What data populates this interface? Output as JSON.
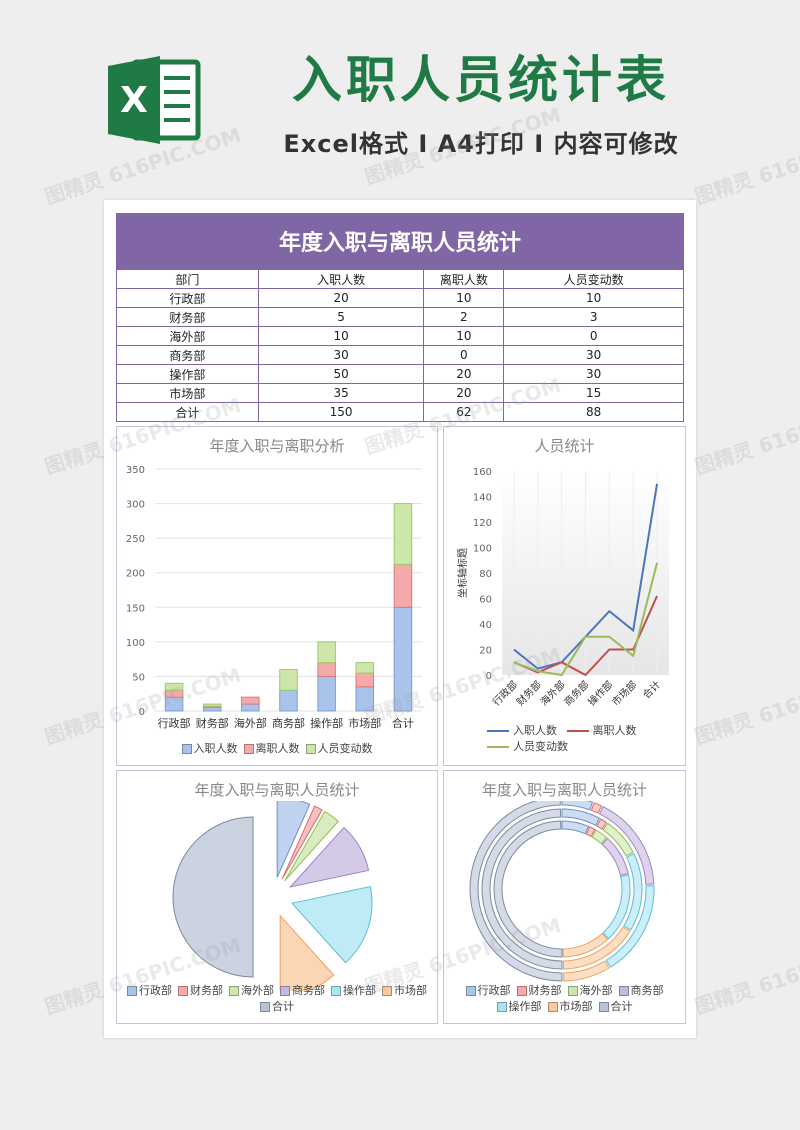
{
  "banner": {
    "logo_letter": "X",
    "title": "入职人员统计表",
    "subtitle": "Excel格式 I A4打印 I 内容可修改"
  },
  "watermark": "图精灵 616PIC.COM",
  "colors": {
    "brand_green": "#1f7a45",
    "header_purple": "#8066a5",
    "series": [
      "#a9c4eb",
      "#f4a9aa",
      "#cde6a9",
      "#c7b7e0",
      "#a9e4f3",
      "#f9c89c",
      "#b9c3d6"
    ],
    "line_series": [
      "#4a76be",
      "#c0504d",
      "#9bbb59"
    ]
  },
  "table": {
    "title": "年度入职与离职人员统计",
    "headers": [
      "部门",
      "入职人数",
      "离职人数",
      "人员变动数"
    ],
    "rows": [
      [
        "行政部",
        "20",
        "10",
        "10"
      ],
      [
        "财务部",
        "5",
        "2",
        "3"
      ],
      [
        "海外部",
        "10",
        "10",
        "0"
      ],
      [
        "商务部",
        "30",
        "0",
        "30"
      ],
      [
        "操作部",
        "50",
        "20",
        "30"
      ],
      [
        "市场部",
        "35",
        "20",
        "15"
      ],
      [
        "合计",
        "150",
        "62",
        "88"
      ]
    ]
  },
  "chart_data": [
    {
      "type": "bar",
      "stacked": true,
      "title": "年度入职与离职分析",
      "categories": [
        "行政部",
        "财务部",
        "海外部",
        "商务部",
        "操作部",
        "市场部",
        "合计"
      ],
      "series": [
        {
          "name": "入职人数",
          "values": [
            20,
            5,
            10,
            30,
            50,
            35,
            150
          ]
        },
        {
          "name": "离职人数",
          "values": [
            10,
            2,
            10,
            0,
            20,
            20,
            62
          ]
        },
        {
          "name": "人员变动数",
          "values": [
            10,
            3,
            0,
            30,
            30,
            15,
            88
          ]
        }
      ],
      "ylim": [
        0,
        350
      ],
      "yticks": [
        "0",
        "50",
        "100",
        "150",
        "200",
        "250",
        "300",
        "350"
      ],
      "grid": true,
      "legend": "bottom"
    },
    {
      "type": "line",
      "title": "人员统计",
      "ylabel": "坐标轴标题",
      "categories": [
        "行政部",
        "财务部",
        "海外部",
        "商务部",
        "操作部",
        "市场部",
        "合计"
      ],
      "series": [
        {
          "name": "入职人数",
          "values": [
            20,
            5,
            10,
            30,
            50,
            35,
            150
          ]
        },
        {
          "name": "离职人数",
          "values": [
            10,
            2,
            10,
            0,
            20,
            20,
            62
          ]
        },
        {
          "name": "人员变动数",
          "values": [
            10,
            3,
            0,
            30,
            30,
            15,
            88
          ]
        }
      ],
      "ylim": [
        0,
        160
      ],
      "yticks": [
        "0",
        "20",
        "40",
        "60",
        "80",
        "100",
        "120",
        "140",
        "160"
      ],
      "legend": "bottom"
    },
    {
      "type": "pie",
      "title": "年度入职与离职人员统计",
      "categories": [
        "行政部",
        "财务部",
        "海外部",
        "商务部",
        "操作部",
        "市场部",
        "合计"
      ],
      "values": [
        20,
        5,
        10,
        30,
        50,
        35,
        150
      ],
      "legend": "bottom"
    },
    {
      "type": "doughnut",
      "title": "年度入职与离职人员统计",
      "categories": [
        "行政部",
        "财务部",
        "海外部",
        "商务部",
        "操作部",
        "市场部",
        "合计"
      ],
      "series": [
        {
          "values": [
            20,
            5,
            10,
            30,
            50,
            35,
            150
          ]
        },
        {
          "values": [
            10,
            2,
            10,
            0,
            20,
            20,
            62
          ]
        },
        {
          "values": [
            10,
            3,
            0,
            30,
            30,
            15,
            88
          ]
        }
      ],
      "legend": "bottom"
    }
  ]
}
